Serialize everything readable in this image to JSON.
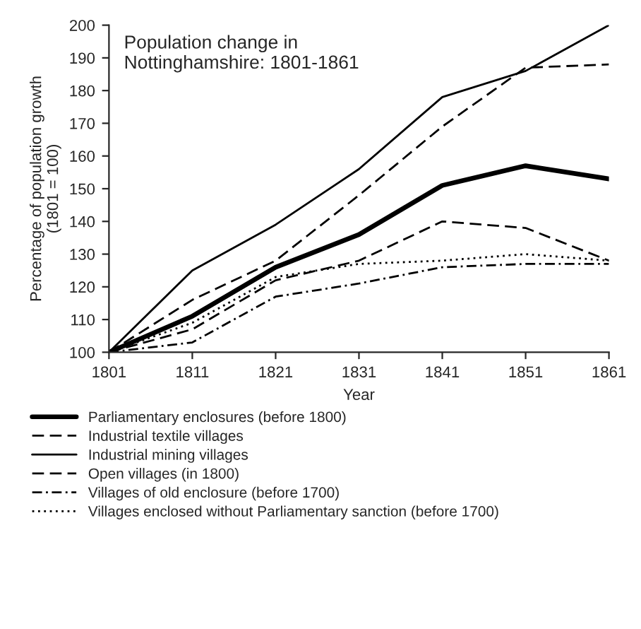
{
  "chart_data": {
    "type": "line",
    "title": "Population change in\nNottinghamshire: 1801-1861",
    "xlabel": "Year",
    "ylabel": "Percentage of population growth\n(1801 = 100)",
    "x": [
      1801,
      1811,
      1821,
      1831,
      1841,
      1851,
      1861
    ],
    "series": [
      {
        "name": "Parliamentary enclosures (before 1800)",
        "color": "#000000",
        "line_style": "solid",
        "values": [
          100,
          111,
          126,
          136,
          151,
          157,
          153
        ]
      },
      {
        "name": "Industrial textile villages",
        "color": "#000000",
        "line_style": "dashed",
        "values": [
          100,
          116,
          128,
          148,
          169,
          187,
          188
        ]
      },
      {
        "name": "Industrial mining villages",
        "color": "#000000",
        "line_style": "solid",
        "values": [
          100,
          125,
          139,
          156,
          178,
          186,
          200
        ]
      },
      {
        "name": "Open villages (in 1800)",
        "color": "#000000",
        "line_style": "dashed",
        "values": [
          100,
          107,
          122,
          128,
          140,
          138,
          128
        ]
      },
      {
        "name": "Villages of old enclosure (before 1700)",
        "color": "#000000",
        "line_style": "dashdot",
        "values": [
          100,
          103,
          117,
          121,
          126,
          127,
          127
        ]
      },
      {
        "name": "Villages enclosed without Parliamentary sanction (before 1700)",
        "color": "#000000",
        "line_style": "dotted",
        "values": [
          100,
          109,
          123,
          127,
          128,
          130,
          128
        ]
      }
    ],
    "xlim": [
      1801,
      1861
    ],
    "xticks": [
      1801,
      1811,
      1821,
      1831,
      1841,
      1851,
      1861
    ],
    "ylim": [
      100,
      200
    ],
    "yticks": [
      100,
      110,
      120,
      130,
      140,
      150,
      160,
      170,
      180,
      190,
      200
    ],
    "grid": false,
    "legend": "bottom",
    "marker": "none"
  }
}
